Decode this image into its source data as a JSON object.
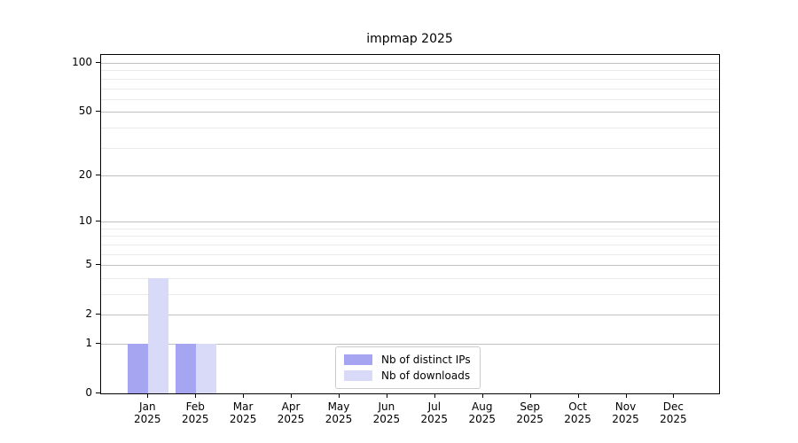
{
  "chart_data": {
    "type": "bar",
    "title": "impmap 2025",
    "categories": [
      "Jan",
      "Feb",
      "Mar",
      "Apr",
      "May",
      "Jun",
      "Jul",
      "Aug",
      "Sep",
      "Oct",
      "Nov",
      "Dec"
    ],
    "x_year_label": "2025",
    "series": [
      {
        "name": "Nb of distinct IPs",
        "color": "#a5a5f1",
        "values": [
          1,
          1,
          0,
          0,
          0,
          0,
          0,
          0,
          0,
          0,
          0,
          0
        ]
      },
      {
        "name": "Nb of downloads",
        "color": "#d9d9f8",
        "values": [
          4,
          1,
          0,
          0,
          0,
          0,
          0,
          0,
          0,
          0,
          0,
          0
        ]
      }
    ],
    "y_axis": {
      "scale": "log1p",
      "ticks": [
        0,
        1,
        2,
        5,
        10,
        20,
        50,
        100
      ],
      "minor_gridlines": [
        3,
        4,
        6,
        7,
        8,
        9,
        30,
        40,
        60,
        70,
        80,
        90
      ],
      "ylim": [
        0,
        112
      ]
    },
    "legend_position": "lower center",
    "grid": true,
    "colors": {
      "major_grid": "#c0c0c0",
      "minor_grid": "#ebebeb",
      "spine": "#000000",
      "text": "#000000",
      "background": "#ffffff"
    }
  }
}
